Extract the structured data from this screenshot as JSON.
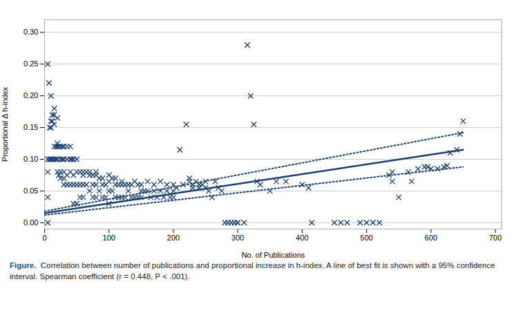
{
  "chart_data": {
    "type": "scatter",
    "xlabel": "No. of Publications",
    "ylabel": "Proportional Δ h-index",
    "caption_label": "Figure.",
    "caption": "  Correlation between number of publications and proportional increase in h-index. A line of best fit is shown with a 95% confidence interval. Spearman coefficient (r = 0.448, P < .001).",
    "xlim": [
      0,
      710
    ],
    "ylim": [
      -0.01,
      0.32
    ],
    "xticks": [
      0,
      100,
      200,
      300,
      400,
      500,
      600,
      700
    ],
    "yticks": [
      {
        "value": 0.0,
        "label": "0.00"
      },
      {
        "value": 0.05,
        "label": "0.05"
      },
      {
        "value": 0.1,
        "label": "0.10"
      },
      {
        "value": 0.15,
        "label": "0.15"
      },
      {
        "value": 0.2,
        "label": "0.20"
      },
      {
        "value": 0.25,
        "label": "0.25"
      },
      {
        "value": 0.3,
        "label": "0.30"
      }
    ],
    "grid": "y",
    "series": [
      {
        "type": "scatter",
        "marker": "x",
        "color": "#1a3f6f",
        "x": [
          5,
          5,
          5,
          5,
          5,
          7,
          8,
          8,
          10,
          10,
          10,
          10,
          12,
          12,
          12,
          15,
          15,
          15,
          15,
          15,
          18,
          18,
          20,
          20,
          20,
          20,
          20,
          22,
          22,
          25,
          25,
          25,
          25,
          28,
          28,
          30,
          30,
          30,
          30,
          30,
          35,
          35,
          35,
          35,
          40,
          40,
          40,
          40,
          42,
          45,
          45,
          45,
          45,
          50,
          50,
          50,
          50,
          55,
          55,
          55,
          60,
          60,
          60,
          60,
          65,
          65,
          70,
          70,
          70,
          75,
          75,
          75,
          80,
          80,
          80,
          80,
          85,
          85,
          90,
          90,
          90,
          95,
          95,
          100,
          100,
          100,
          100,
          105,
          105,
          110,
          110,
          110,
          115,
          115,
          120,
          120,
          120,
          125,
          125,
          130,
          130,
          135,
          135,
          140,
          140,
          145,
          145,
          150,
          150,
          150,
          155,
          160,
          160,
          165,
          170,
          170,
          175,
          180,
          180,
          185,
          190,
          190,
          195,
          200,
          200,
          200,
          205,
          210,
          215,
          220,
          225,
          225,
          230,
          230,
          235,
          240,
          240,
          245,
          250,
          250,
          255,
          260,
          265,
          270,
          275,
          280,
          285,
          290,
          295,
          300,
          300,
          310,
          315,
          320,
          325,
          330,
          335,
          350,
          360,
          375,
          400,
          410,
          415,
          450,
          460,
          470,
          490,
          500,
          510,
          520,
          535,
          540,
          540,
          550,
          565,
          570,
          580,
          590,
          595,
          600,
          610,
          620,
          625,
          630,
          640,
          645,
          650
        ],
        "values": [
          0.25,
          0.1,
          0.08,
          0.04,
          0.0,
          0.22,
          0.15,
          0.1,
          0.2,
          0.16,
          0.15,
          0.1,
          0.17,
          0.16,
          0.1,
          0.18,
          0.17,
          0.155,
          0.12,
          0.1,
          0.12,
          0.1,
          0.165,
          0.125,
          0.12,
          0.1,
          0.08,
          0.12,
          0.075,
          0.12,
          0.1,
          0.08,
          0.07,
          0.12,
          0.1,
          0.12,
          0.1,
          0.08,
          0.07,
          0.06,
          0.12,
          0.1,
          0.075,
          0.06,
          0.12,
          0.1,
          0.08,
          0.06,
          0.1,
          0.1,
          0.075,
          0.06,
          0.03,
          0.1,
          0.08,
          0.06,
          0.03,
          0.08,
          0.06,
          0.04,
          0.08,
          0.075,
          0.06,
          0.04,
          0.08,
          0.06,
          0.08,
          0.075,
          0.05,
          0.075,
          0.06,
          0.04,
          0.08,
          0.075,
          0.06,
          0.04,
          0.07,
          0.05,
          0.07,
          0.06,
          0.04,
          0.06,
          0.04,
          0.075,
          0.065,
          0.05,
          0.03,
          0.07,
          0.05,
          0.07,
          0.06,
          0.04,
          0.06,
          0.04,
          0.065,
          0.06,
          0.04,
          0.06,
          0.04,
          0.06,
          0.05,
          0.06,
          0.04,
          0.065,
          0.04,
          0.06,
          0.04,
          0.06,
          0.05,
          0.04,
          0.05,
          0.065,
          0.05,
          0.04,
          0.06,
          0.05,
          0.04,
          0.065,
          0.05,
          0.04,
          0.06,
          0.05,
          0.04,
          0.06,
          0.05,
          0.04,
          0.055,
          0.115,
          0.06,
          0.155,
          0.07,
          0.065,
          0.06,
          0.055,
          0.065,
          0.06,
          0.055,
          0.06,
          0.065,
          0.055,
          0.05,
          0.04,
          0.065,
          0.055,
          0.05,
          0.0,
          0.0,
          0.0,
          0.0,
          0.0,
          0.0,
          0.0,
          0.28,
          0.2,
          0.155,
          0.065,
          0.06,
          0.05,
          0.065,
          0.065,
          0.06,
          0.055,
          0.0,
          0.0,
          0.0,
          0.0,
          0.0,
          0.0,
          0.0,
          0.0,
          0.075,
          0.08,
          0.065,
          0.04,
          0.08,
          0.065,
          0.085,
          0.088,
          0.088,
          0.085,
          0.085,
          0.088,
          0.09,
          0.11,
          0.115,
          0.14,
          0.16
        ]
      },
      {
        "type": "line",
        "line_style": "dotted",
        "color": "#1a3f6f",
        "x": [
          0,
          650
        ],
        "values": [
          0.018,
          0.142
        ]
      },
      {
        "type": "line",
        "line_style": "dotted",
        "color": "#1a3f6f",
        "x": [
          0,
          650
        ],
        "values": [
          0.012,
          0.088
        ]
      },
      {
        "type": "line",
        "line_style": "solid",
        "color": "#1a3f6f",
        "x": [
          0,
          650
        ],
        "values": [
          0.015,
          0.115
        ]
      }
    ]
  }
}
